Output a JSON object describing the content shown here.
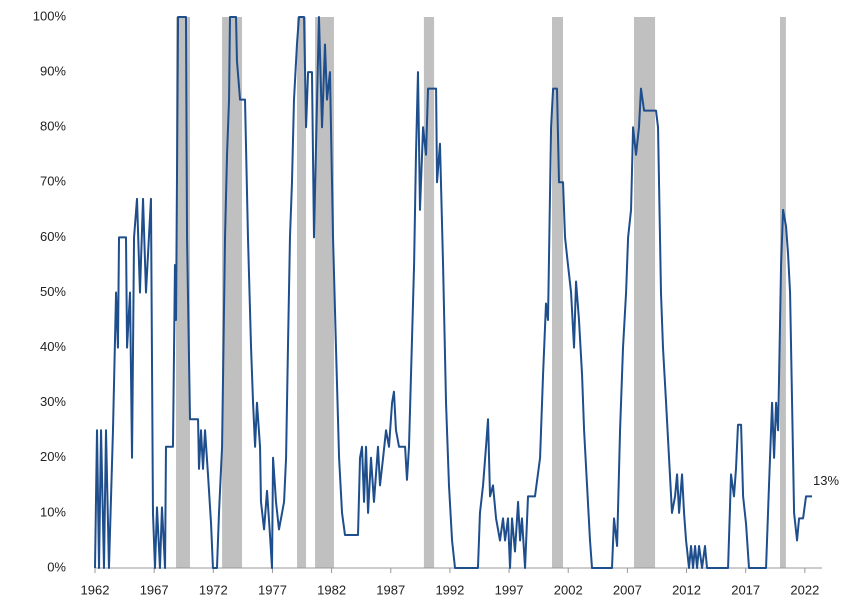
{
  "chart_data": {
    "type": "line",
    "color": "#1f4e8c",
    "shade_color": "#c0c0c0",
    "shaded_regions": [
      [
        1968.85,
        1970.03
      ],
      [
        1972.74,
        1974.43
      ],
      [
        1979.08,
        1979.84
      ],
      [
        1980.6,
        1982.2
      ],
      [
        1989.8,
        1990.66
      ],
      [
        2000.63,
        2001.56
      ],
      [
        2007.56,
        2009.34
      ],
      [
        2019.9,
        2020.4
      ]
    ],
    "x": [
      1962.0,
      1962.17,
      1962.34,
      1962.51,
      1962.76,
      1962.93,
      1963.18,
      1963.52,
      1963.78,
      1963.94,
      1964.03,
      1964.62,
      1964.71,
      1964.96,
      1965.13,
      1965.3,
      1965.55,
      1965.8,
      1966.06,
      1966.31,
      1966.73,
      1966.9,
      1967.07,
      1967.24,
      1967.49,
      1967.66,
      1967.92,
      1968.0,
      1968.59,
      1968.76,
      1968.85,
      1969.02,
      1969.69,
      1969.78,
      1970.03,
      1970.71,
      1970.79,
      1970.96,
      1971.13,
      1971.3,
      1971.55,
      1971.81,
      1971.97,
      1972.31,
      1972.48,
      1972.74,
      1972.99,
      1973.16,
      1973.33,
      1973.41,
      1973.92,
      1974.0,
      1974.26,
      1974.68,
      1974.93,
      1975.19,
      1975.36,
      1975.53,
      1975.69,
      1975.95,
      1976.03,
      1976.29,
      1976.54,
      1976.79,
      1976.96,
      1977.05,
      1977.3,
      1977.55,
      1977.81,
      1977.98,
      1978.15,
      1978.31,
      1978.48,
      1978.65,
      1978.82,
      1979.07,
      1979.24,
      1979.67,
      1979.84,
      1980.01,
      1980.34,
      1980.51,
      1980.77,
      1980.93,
      1981.19,
      1981.44,
      1981.61,
      1981.86,
      1982.12,
      1982.37,
      1982.63,
      1982.88,
      1983.13,
      1984.23,
      1984.4,
      1984.57,
      1984.74,
      1984.91,
      1985.08,
      1985.33,
      1985.58,
      1985.92,
      1986.09,
      1986.35,
      1986.6,
      1986.85,
      1987.11,
      1987.27,
      1987.44,
      1987.7,
      1988.21,
      1988.37,
      1988.54,
      1988.97,
      1989.13,
      1989.3,
      1989.47,
      1989.73,
      1989.98,
      1990.15,
      1990.83,
      1990.91,
      1991.16,
      1991.42,
      1991.67,
      1991.92,
      1992.18,
      1992.43,
      1994.37,
      1994.54,
      1994.8,
      1995.05,
      1995.22,
      1995.39,
      1995.64,
      1995.9,
      1996.23,
      1996.49,
      1996.66,
      1996.91,
      1997.08,
      1997.25,
      1997.5,
      1997.76,
      1997.93,
      1998.09,
      1998.35,
      1998.6,
      1999.19,
      1999.62,
      1999.87,
      2000.12,
      2000.29,
      2000.55,
      2000.72,
      2001.05,
      2001.22,
      2001.56,
      2001.73,
      2001.98,
      2002.24,
      2002.49,
      2002.66,
      2002.91,
      2003.17,
      2003.34,
      2003.59,
      2003.84,
      2004.01,
      2005.7,
      2005.87,
      2006.13,
      2006.38,
      2006.63,
      2006.89,
      2007.06,
      2007.31,
      2007.48,
      2007.73,
      2007.98,
      2008.15,
      2008.41,
      2009.42,
      2009.59,
      2009.84,
      2010.01,
      2010.27,
      2010.52,
      2010.77,
      2011.03,
      2011.2,
      2011.37,
      2011.62,
      2011.79,
      2011.96,
      2012.21,
      2012.38,
      2012.55,
      2012.72,
      2012.89,
      2013.06,
      2013.31,
      2013.56,
      2013.73,
      2015.51,
      2015.76,
      2016.01,
      2016.18,
      2016.35,
      2016.61,
      2016.78,
      2017.03,
      2017.28,
      2018.72,
      2018.97,
      2019.23,
      2019.4,
      2019.57,
      2019.74,
      2019.99,
      2020.16,
      2020.41,
      2020.58,
      2020.75,
      2020.92,
      2021.09,
      2021.34,
      2021.51,
      2021.85,
      2022.1,
      2022.61
    ],
    "values": [
      0,
      25,
      0,
      25,
      0,
      25,
      0,
      25,
      50,
      40,
      60,
      60,
      40,
      50,
      20,
      60,
      67,
      50,
      67,
      50,
      67,
      10,
      0,
      11,
      0,
      11,
      0,
      22,
      22,
      55,
      45,
      100,
      100,
      60,
      27,
      27,
      18,
      25,
      18,
      25,
      17,
      8,
      0,
      0,
      10,
      22,
      60,
      75,
      85,
      100,
      100,
      92,
      85,
      85,
      60,
      40,
      30,
      22,
      30,
      22,
      12,
      7,
      14,
      6,
      0,
      20,
      12,
      7,
      10,
      12,
      20,
      40,
      60,
      70,
      85,
      95,
      100,
      100,
      80,
      90,
      90,
      60,
      85,
      100,
      80,
      95,
      85,
      90,
      60,
      40,
      20,
      10,
      6,
      6,
      20,
      22,
      12,
      22,
      10,
      20,
      12,
      22,
      15,
      20,
      25,
      22,
      30,
      32,
      25,
      22,
      22,
      16,
      22,
      55,
      75,
      90,
      65,
      80,
      75,
      87,
      87,
      70,
      77,
      55,
      30,
      15,
      5,
      0,
      0,
      10,
      15,
      22,
      27,
      13,
      15,
      9,
      5,
      9,
      5,
      9,
      0,
      9,
      3,
      12,
      5,
      9,
      0,
      13,
      13,
      20,
      35,
      48,
      45,
      80,
      87,
      87,
      70,
      70,
      60,
      55,
      50,
      40,
      52,
      45,
      35,
      25,
      15,
      5,
      0,
      0,
      9,
      4,
      25,
      40,
      50,
      60,
      65,
      80,
      75,
      80,
      87,
      83,
      83,
      80,
      50,
      40,
      30,
      20,
      10,
      13,
      17,
      10,
      17,
      10,
      5,
      0,
      4,
      0,
      4,
      0,
      4,
      0,
      4,
      0,
      0,
      17,
      13,
      18,
      26,
      26,
      13,
      8,
      0,
      0,
      15,
      30,
      20,
      30,
      25,
      55,
      65,
      62,
      57,
      50,
      30,
      10,
      5,
      9,
      9,
      13,
      13
    ],
    "annotations": [
      {
        "x": 2022.61,
        "y": 13,
        "text": "13%"
      }
    ],
    "xlim": [
      1962,
      2023.45
    ],
    "xticks": [
      1962,
      1967,
      1972,
      1977,
      1982,
      1987,
      1992,
      1997,
      2002,
      2007,
      2012,
      2017,
      2022
    ],
    "ylim": [
      0,
      100
    ],
    "yticks": [
      {
        "value": 0,
        "label": "0%"
      },
      {
        "value": 10,
        "label": "10%"
      },
      {
        "value": 20,
        "label": "20%"
      },
      {
        "value": 30,
        "label": "30%"
      },
      {
        "value": 40,
        "label": "40%"
      },
      {
        "value": 50,
        "label": "50%"
      },
      {
        "value": 60,
        "label": "60%"
      },
      {
        "value": 70,
        "label": "70%"
      },
      {
        "value": 80,
        "label": "80%"
      },
      {
        "value": 90,
        "label": "90%"
      },
      {
        "value": 100,
        "label": "100%"
      }
    ],
    "grid": false
  }
}
